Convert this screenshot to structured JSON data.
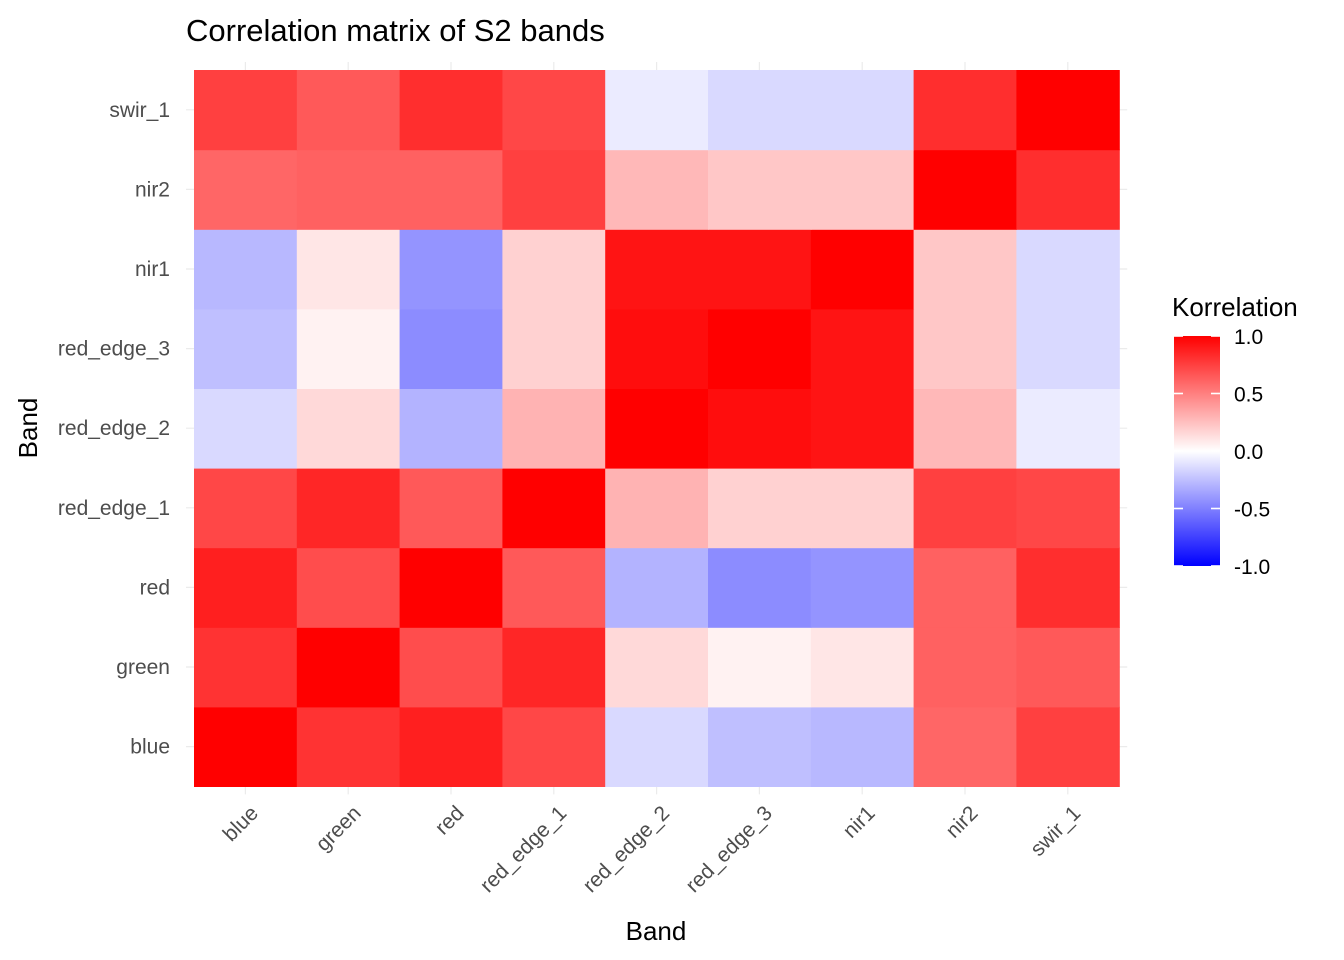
{
  "chart_data": {
    "type": "heatmap",
    "title": "Correlation matrix  of S2 bands",
    "xlabel": "Band",
    "ylabel": "Band",
    "x_categories": [
      "blue",
      "green",
      "red",
      "red_edge_1",
      "red_edge_2",
      "red_edge_3",
      "nir1",
      "nir2",
      "swir_1"
    ],
    "y_categories": [
      "blue",
      "green",
      "red",
      "red_edge_1",
      "red_edge_2",
      "red_edge_3",
      "nir1",
      "nir2",
      "swir_1"
    ],
    "values": [
      [
        1.0,
        0.8,
        0.88,
        0.72,
        -0.15,
        -0.25,
        -0.28,
        0.6,
        0.75
      ],
      [
        0.8,
        1.0,
        0.7,
        0.85,
        0.15,
        0.05,
        0.1,
        0.62,
        0.65
      ],
      [
        0.88,
        0.7,
        1.0,
        0.65,
        -0.3,
        -0.45,
        -0.42,
        0.62,
        0.82
      ],
      [
        0.72,
        0.85,
        0.65,
        1.0,
        0.3,
        0.18,
        0.18,
        0.75,
        0.72
      ],
      [
        -0.15,
        0.15,
        -0.3,
        0.3,
        1.0,
        0.95,
        0.92,
        0.28,
        -0.08
      ],
      [
        -0.25,
        0.05,
        -0.45,
        0.18,
        0.95,
        1.0,
        0.92,
        0.22,
        -0.15
      ],
      [
        -0.28,
        0.1,
        -0.42,
        0.18,
        0.92,
        0.92,
        1.0,
        0.22,
        -0.15
      ],
      [
        0.6,
        0.62,
        0.62,
        0.75,
        0.28,
        0.22,
        0.22,
        1.0,
        0.82
      ],
      [
        0.75,
        0.65,
        0.82,
        0.72,
        -0.08,
        -0.15,
        -0.15,
        0.82,
        1.0
      ]
    ],
    "legend": {
      "title": "Korrelation",
      "ticks": [
        1.0,
        0.5,
        0.0,
        -0.5,
        -1.0
      ],
      "tick_labels": [
        "1.0",
        "0.5",
        "0.0",
        "-0.5",
        "-1.0"
      ],
      "range": [
        -1,
        1
      ],
      "low_color": "#0000ff",
      "mid_color": "#ffffff",
      "high_color": "#ff0000",
      "placement": "right"
    },
    "grid": true
  }
}
